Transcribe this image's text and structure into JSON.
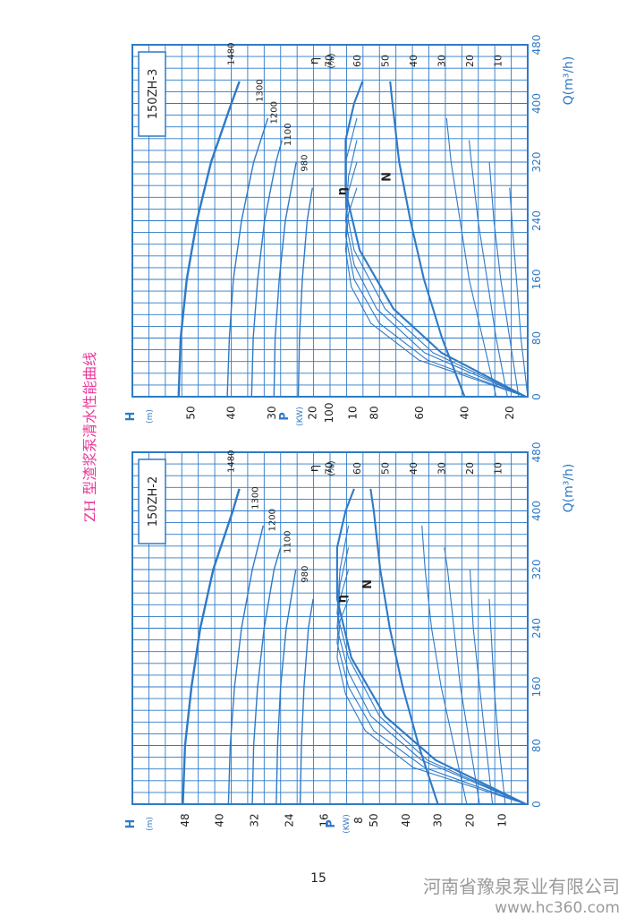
{
  "page": {
    "title": "ZH 型渣浆泵清水性能曲线",
    "page_number": "15",
    "watermark_company": "河南省豫泉泵业有限公司",
    "watermark_url": "www.hc360.com",
    "title_color": "#e8399a",
    "line_color": "#2f7ac6",
    "text_color": "#222222"
  },
  "chart_data": [
    {
      "type": "line",
      "title": "150ZH-3",
      "xlabel": "Q(m³/h)",
      "x_ticks": [
        0,
        80,
        160,
        240,
        320,
        400,
        480
      ],
      "xlim": [
        0,
        480
      ],
      "head_label": "H",
      "head_unit": "(m)",
      "head_ticks": [
        10,
        20,
        30,
        40,
        50
      ],
      "head_lim": [
        0,
        60
      ],
      "eff_label": "η",
      "eff_unit": "(%)",
      "eff_ticks": [
        10,
        20,
        30,
        40,
        50,
        60,
        70
      ],
      "power_label": "P",
      "power_unit": "(KW)",
      "power_ticks": [
        20,
        40,
        60,
        80,
        100
      ],
      "grid": true,
      "curve_labels": {
        "efficiency": "η",
        "power": "N"
      },
      "head_series": [
        {
          "name": "1480",
          "x": [
            0,
            80,
            160,
            240,
            320,
            400,
            430
          ],
          "y": [
            53,
            52.5,
            51,
            48.5,
            45,
            40,
            38
          ]
        },
        {
          "name": "1300",
          "x": [
            0,
            80,
            160,
            240,
            320,
            380
          ],
          "y": [
            41,
            40.5,
            39.5,
            37.5,
            34.5,
            31
          ]
        },
        {
          "name": "1200",
          "x": [
            0,
            80,
            160,
            240,
            320,
            350
          ],
          "y": [
            35,
            34.6,
            33.5,
            31.8,
            29,
            27.5
          ]
        },
        {
          "name": "1100",
          "x": [
            0,
            80,
            160,
            240,
            320
          ],
          "y": [
            29.5,
            29.2,
            28.2,
            26.7,
            24
          ]
        },
        {
          "name": "980",
          "x": [
            0,
            80,
            160,
            240,
            285
          ],
          "y": [
            23.5,
            23.2,
            22.5,
            21.3,
            20
          ]
        }
      ],
      "efficiency_series": [
        {
          "name": "1480",
          "x": [
            0,
            60,
            120,
            200,
            280,
            350,
            400,
            430
          ],
          "y": [
            0,
            30,
            47,
            59,
            64,
            64,
            61,
            58
          ]
        },
        {
          "name": "1300",
          "x": [
            0,
            60,
            120,
            200,
            260,
            320,
            380
          ],
          "y": [
            0,
            33,
            50,
            61,
            64,
            64,
            60
          ]
        },
        {
          "name": "1200",
          "x": [
            0,
            60,
            120,
            180,
            240,
            300,
            350
          ],
          "y": [
            0,
            36,
            53,
            61,
            64,
            63,
            60
          ]
        },
        {
          "name": "1100",
          "x": [
            0,
            50,
            100,
            160,
            220,
            280,
            320
          ],
          "y": [
            0,
            35,
            52,
            61,
            64,
            63,
            60
          ]
        },
        {
          "name": "980",
          "x": [
            0,
            50,
            100,
            150,
            200,
            250,
            285
          ],
          "y": [
            0,
            38,
            55,
            62,
            64,
            63,
            60
          ]
        }
      ],
      "power_series": [
        {
          "name": "1480",
          "x": [
            0,
            80,
            160,
            240,
            320,
            400,
            430
          ],
          "y": [
            40,
            50,
            58,
            64,
            69,
            72,
            73
          ]
        },
        {
          "name": "1300",
          "x": [
            0,
            80,
            160,
            240,
            320,
            380
          ],
          "y": [
            26,
            32,
            38,
            42,
            46,
            48
          ]
        },
        {
          "name": "1200",
          "x": [
            0,
            80,
            160,
            240,
            320,
            350
          ],
          "y": [
            21,
            26,
            30,
            34,
            37,
            38
          ]
        },
        {
          "name": "1100",
          "x": [
            0,
            80,
            160,
            240,
            320
          ],
          "y": [
            16,
            20,
            24,
            27,
            29
          ]
        },
        {
          "name": "980",
          "x": [
            0,
            80,
            160,
            240,
            285
          ],
          "y": [
            12,
            15,
            17,
            19,
            20
          ]
        }
      ]
    },
    {
      "type": "line",
      "title": "150ZH-2",
      "xlabel": "Q(m³/h)",
      "x_ticks": [
        0,
        80,
        160,
        240,
        320,
        400,
        480
      ],
      "xlim": [
        0,
        480
      ],
      "head_label": "H",
      "head_unit": "(m)",
      "head_ticks": [
        8,
        16,
        24,
        32,
        40,
        48
      ],
      "head_lim": [
        0,
        56
      ],
      "eff_label": "η",
      "eff_unit": "(%)",
      "eff_ticks": [
        10,
        20,
        30,
        40,
        50,
        60,
        70
      ],
      "power_label": "P",
      "power_unit": "(KW)",
      "power_ticks": [
        10,
        20,
        30,
        40,
        50
      ],
      "grid": true,
      "curve_labels": {
        "efficiency": "η",
        "power": "N"
      },
      "head_series": [
        {
          "name": "1480",
          "x": [
            0,
            80,
            160,
            240,
            320,
            400,
            430
          ],
          "y": [
            48.5,
            48,
            46.5,
            44.5,
            41.5,
            37,
            35.5
          ]
        },
        {
          "name": "1300",
          "x": [
            0,
            80,
            160,
            240,
            320,
            380
          ],
          "y": [
            38,
            37.6,
            36.6,
            35,
            32.5,
            30
          ]
        },
        {
          "name": "1200",
          "x": [
            0,
            80,
            160,
            240,
            320,
            350
          ],
          "y": [
            32.5,
            32.2,
            31.3,
            29.8,
            27.5,
            26
          ]
        },
        {
          "name": "1100",
          "x": [
            0,
            80,
            160,
            240,
            320
          ],
          "y": [
            27,
            26.7,
            26,
            24.7,
            22.5
          ]
        },
        {
          "name": "980",
          "x": [
            0,
            80,
            160,
            240,
            280
          ],
          "y": [
            21.5,
            21.2,
            20.6,
            19.6,
            18.5
          ]
        }
      ],
      "efficiency_series": [
        {
          "name": "1480",
          "x": [
            0,
            60,
            120,
            200,
            280,
            350,
            400,
            430
          ],
          "y": [
            0,
            32,
            50,
            62,
            67,
            67,
            64,
            61
          ]
        },
        {
          "name": "1300",
          "x": [
            0,
            60,
            120,
            200,
            260,
            320,
            380
          ],
          "y": [
            0,
            35,
            52,
            63,
            67,
            66,
            63
          ]
        },
        {
          "name": "1200",
          "x": [
            0,
            60,
            120,
            180,
            240,
            300,
            350
          ],
          "y": [
            0,
            37,
            55,
            63,
            67,
            66,
            63
          ]
        },
        {
          "name": "1100",
          "x": [
            0,
            50,
            100,
            160,
            220,
            280,
            320
          ],
          "y": [
            0,
            36,
            54,
            63,
            67,
            66,
            63
          ]
        },
        {
          "name": "980",
          "x": [
            0,
            50,
            100,
            150,
            200,
            250,
            280
          ],
          "y": [
            0,
            40,
            57,
            64,
            67,
            66,
            63
          ]
        }
      ],
      "power_series": [
        {
          "name": "1480",
          "x": [
            0,
            80,
            160,
            240,
            320,
            400,
            430
          ],
          "y": [
            30,
            36,
            41,
            45,
            48,
            50,
            51
          ]
        },
        {
          "name": "1300",
          "x": [
            0,
            80,
            160,
            240,
            320,
            380
          ],
          "y": [
            21,
            25,
            29,
            32,
            34,
            35
          ]
        },
        {
          "name": "1200",
          "x": [
            0,
            80,
            160,
            240,
            320,
            350
          ],
          "y": [
            17,
            20,
            23,
            25,
            27,
            28
          ]
        },
        {
          "name": "1100",
          "x": [
            0,
            80,
            160,
            240,
            320
          ],
          "y": [
            13,
            15,
            17,
            19,
            20
          ]
        },
        {
          "name": "980",
          "x": [
            0,
            80,
            160,
            240,
            280
          ],
          "y": [
            9,
            11,
            12.5,
            13.5,
            14
          ]
        }
      ]
    }
  ]
}
